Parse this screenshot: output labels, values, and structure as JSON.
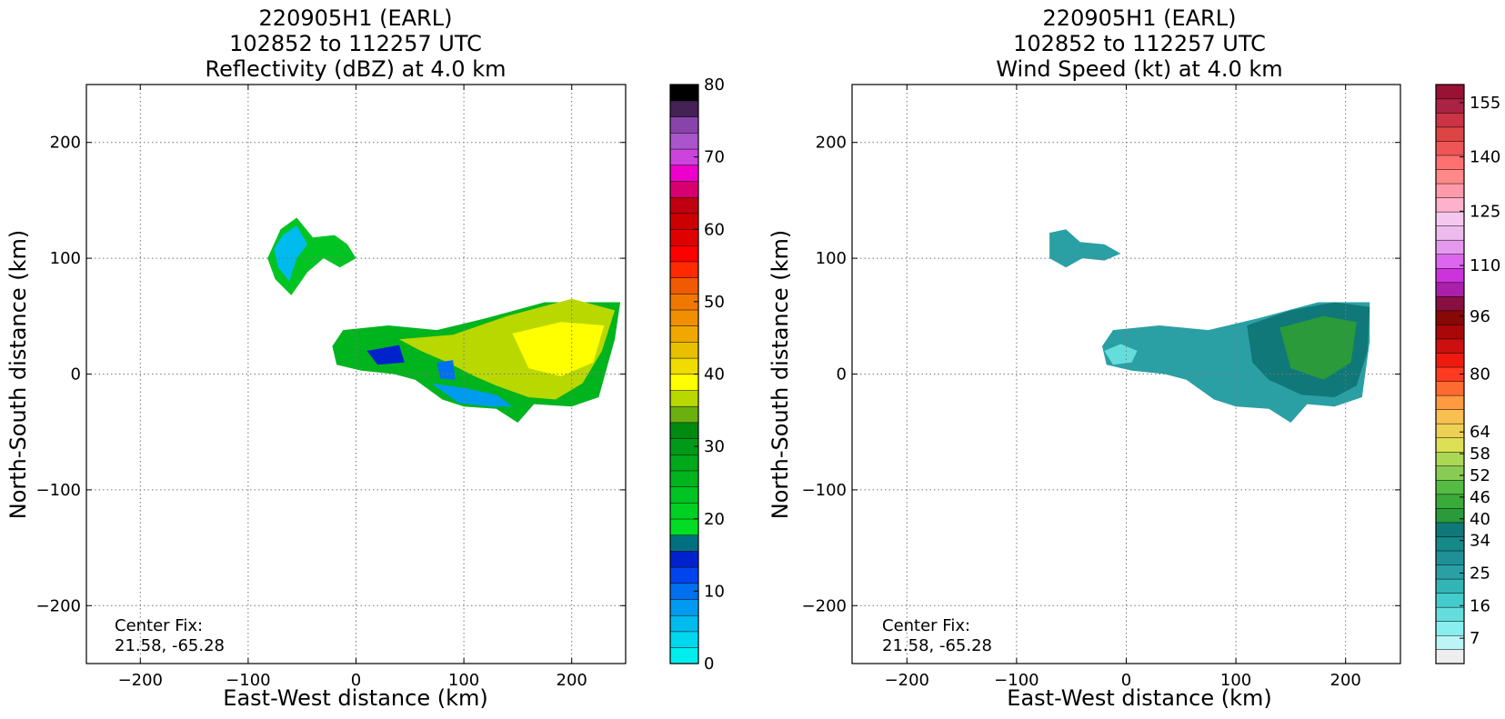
{
  "panels": [
    {
      "title_line1": "220905H1 (EARL)",
      "title_line2": "102852 to 112257 UTC",
      "title_line3": "Reflectivity (dBZ) at 4.0 km",
      "center_fix_label": "Center Fix:",
      "center_fix_value": "21.58, -65.28"
    },
    {
      "title_line1": "220905H1 (EARL)",
      "title_line2": "102852 to 112257 UTC",
      "title_line3": "Wind Speed (kt) at 4.0 km",
      "center_fix_label": "Center Fix:",
      "center_fix_value": "21.58, -65.28"
    }
  ],
  "colors": {
    "reflectivity_scale": [
      "#00eeee",
      "#00d8ee",
      "#00bbee",
      "#009bee",
      "#0070ee",
      "#0044ee",
      "#0022cc",
      "#007080",
      "#00dd22",
      "#00d022",
      "#00c422",
      "#00b41e",
      "#00a81c",
      "#009a18",
      "#008a10",
      "#6cb010",
      "#b8d800",
      "#ffff00",
      "#f0dc00",
      "#e8c000",
      "#f0a800",
      "#f09000",
      "#f07800",
      "#f05a00",
      "#ff2a00",
      "#ff0000",
      "#e00000",
      "#cc0000",
      "#c00010",
      "#d80070",
      "#ee00cc",
      "#cc44dd",
      "#aa55cc",
      "#8844aa",
      "#442255",
      "#000000"
    ],
    "wind_scale": [
      "#eeeeee",
      "#bbf5f5",
      "#88eeee",
      "#66dddd",
      "#44cccc",
      "#33b5b5",
      "#2aa0a5",
      "#209098",
      "#158888",
      "#107878",
      "#2a9a3a",
      "#3aaa3a",
      "#55bb44",
      "#88cc55",
      "#aad855",
      "#dde055",
      "#eed055",
      "#f8c050",
      "#ff9a40",
      "#ff6a30",
      "#ff3a20",
      "#ee1a10",
      "#cc1010",
      "#aa0808",
      "#880808",
      "#881040",
      "#aa20aa",
      "#cc33dd",
      "#dd66ee",
      "#e399ee",
      "#eebbee",
      "#f4c8ee",
      "#ffb0cc",
      "#ff9aaa",
      "#ff8888",
      "#ff7070",
      "#ee5555",
      "#dd4444",
      "#cc3344",
      "#aa2244",
      "#991133"
    ]
  },
  "chart_data": [
    {
      "type": "heatmap",
      "title": "220905H1 (EARL)\n102852 to 112257 UTC\nReflectivity (dBZ) at 4.0 km",
      "xlabel": "East-West distance (km)",
      "ylabel": "North-South distance (km)",
      "xlim": [
        -250,
        250
      ],
      "ylim": [
        -250,
        250
      ],
      "xticks": [
        -200,
        -100,
        0,
        100,
        200
      ],
      "yticks": [
        -200,
        -100,
        0,
        100,
        200
      ],
      "xtick_labels": [
        "−200",
        "−100",
        "0",
        "100",
        "200"
      ],
      "ytick_labels": [
        "−200",
        "−100",
        "0",
        "100",
        "200"
      ],
      "grid": true,
      "colorbar": {
        "min": 0,
        "max": 80,
        "steps": 36,
        "ticks": [
          0,
          10,
          20,
          30,
          40,
          50,
          60,
          70,
          80
        ],
        "tick_labels": [
          "0",
          "10",
          "20",
          "30",
          "40",
          "50",
          "60",
          "70",
          "80"
        ]
      },
      "regions": [
        {
          "points": [
            [
              -70,
              125
            ],
            [
              -55,
              135
            ],
            [
              -40,
              118
            ],
            [
              -20,
              120
            ],
            [
              -8,
              112
            ],
            [
              0,
              100
            ],
            [
              -15,
              92
            ],
            [
              -30,
              100
            ],
            [
              -45,
              88
            ],
            [
              -60,
              68
            ],
            [
              -75,
              82
            ],
            [
              -82,
              100
            ]
          ],
          "value": 24
        },
        {
          "points": [
            [
              -68,
              120
            ],
            [
              -55,
              128
            ],
            [
              -45,
              112
            ],
            [
              -55,
              100
            ],
            [
              -62,
              80
            ],
            [
              -72,
              92
            ],
            [
              -76,
              108
            ]
          ],
          "value": 6
        },
        {
          "points": [
            [
              -12,
              38
            ],
            [
              30,
              42
            ],
            [
              75,
              38
            ],
            [
              120,
              48
            ],
            [
              175,
              62
            ],
            [
              245,
              62
            ],
            [
              240,
              30
            ],
            [
              225,
              -20
            ],
            [
              200,
              -28
            ],
            [
              165,
              -26
            ],
            [
              150,
              -42
            ],
            [
              130,
              -30
            ],
            [
              100,
              -28
            ],
            [
              80,
              -22
            ],
            [
              55,
              -5
            ],
            [
              35,
              0
            ],
            [
              5,
              3
            ],
            [
              -18,
              8
            ],
            [
              -22,
              24
            ]
          ],
          "value": 26
        },
        {
          "points": [
            [
              40,
              30
            ],
            [
              90,
              34
            ],
            [
              140,
              50
            ],
            [
              200,
              65
            ],
            [
              240,
              55
            ],
            [
              228,
              20
            ],
            [
              210,
              -8
            ],
            [
              185,
              -22
            ],
            [
              160,
              -20
            ],
            [
              130,
              -10
            ],
            [
              110,
              -2
            ],
            [
              85,
              10
            ],
            [
              60,
              20
            ]
          ],
          "value": 36
        },
        {
          "points": [
            [
              145,
              35
            ],
            [
              190,
              45
            ],
            [
              230,
              42
            ],
            [
              220,
              10
            ],
            [
              190,
              -2
            ],
            [
              160,
              5
            ]
          ],
          "value": 39
        },
        {
          "points": [
            [
              70,
              -8
            ],
            [
              100,
              -12
            ],
            [
              130,
              -18
            ],
            [
              145,
              -28
            ],
            [
              125,
              -28
            ],
            [
              95,
              -25
            ]
          ],
          "value": 8
        },
        {
          "points": [
            [
              75,
              10
            ],
            [
              90,
              12
            ],
            [
              92,
              -5
            ],
            [
              78,
              -4
            ]
          ],
          "value": 9
        },
        {
          "points": [
            [
              10,
              20
            ],
            [
              40,
              25
            ],
            [
              45,
              10
            ],
            [
              20,
              8
            ]
          ],
          "value": 15
        }
      ]
    },
    {
      "type": "heatmap",
      "title": "220905H1 (EARL)\n102852 to 112257 UTC\nWind Speed (kt) at 4.0 km",
      "xlabel": "East-West distance (km)",
      "ylabel": "North-South distance (km)",
      "xlim": [
        -250,
        250
      ],
      "ylim": [
        -250,
        250
      ],
      "xticks": [
        -200,
        -100,
        0,
        100,
        200
      ],
      "yticks": [
        -200,
        -100,
        0,
        100,
        200
      ],
      "xtick_labels": [
        "−200",
        "−100",
        "0",
        "100",
        "200"
      ],
      "ytick_labels": [
        "−200",
        "−100",
        "0",
        "100",
        "200"
      ],
      "grid": true,
      "colorbar": {
        "min": 0,
        "max": 160,
        "steps": 41,
        "ticks": [
          7,
          16,
          25,
          34,
          40,
          46,
          52,
          58,
          64,
          80,
          96,
          110,
          125,
          140,
          155
        ],
        "tick_labels": [
          "7",
          "16",
          "25",
          "34",
          "40",
          "46",
          "52",
          "58",
          "64",
          "80",
          "96",
          "110",
          "125",
          "140",
          "155"
        ]
      },
      "regions": [
        {
          "points": [
            [
              -70,
              122
            ],
            [
              -55,
              125
            ],
            [
              -42,
              114
            ],
            [
              -20,
              112
            ],
            [
              -5,
              104
            ],
            [
              -20,
              98
            ],
            [
              -40,
              100
            ],
            [
              -55,
              92
            ],
            [
              -70,
              100
            ]
          ],
          "value": 25
        },
        {
          "points": [
            [
              -12,
              38
            ],
            [
              30,
              42
            ],
            [
              75,
              38
            ],
            [
              120,
              48
            ],
            [
              175,
              62
            ],
            [
              222,
              62
            ],
            [
              222,
              28
            ],
            [
              215,
              -20
            ],
            [
              190,
              -28
            ],
            [
              165,
              -26
            ],
            [
              150,
              -42
            ],
            [
              130,
              -30
            ],
            [
              100,
              -28
            ],
            [
              80,
              -22
            ],
            [
              55,
              -5
            ],
            [
              35,
              0
            ],
            [
              5,
              3
            ],
            [
              -18,
              8
            ],
            [
              -22,
              24
            ]
          ],
          "value": 24
        },
        {
          "points": [
            [
              110,
              42
            ],
            [
              150,
              55
            ],
            [
              190,
              62
            ],
            [
              222,
              58
            ],
            [
              220,
              20
            ],
            [
              210,
              -10
            ],
            [
              190,
              -20
            ],
            [
              160,
              -18
            ],
            [
              130,
              -5
            ],
            [
              115,
              10
            ]
          ],
          "value": 38
        },
        {
          "points": [
            [
              140,
              40
            ],
            [
              180,
              50
            ],
            [
              210,
              45
            ],
            [
              205,
              10
            ],
            [
              180,
              -5
            ],
            [
              150,
              5
            ]
          ],
          "value": 42
        },
        {
          "points": [
            [
              -20,
              20
            ],
            [
              -5,
              26
            ],
            [
              10,
              20
            ],
            [
              5,
              10
            ],
            [
              -12,
              8
            ]
          ],
          "value": 12
        }
      ]
    }
  ]
}
